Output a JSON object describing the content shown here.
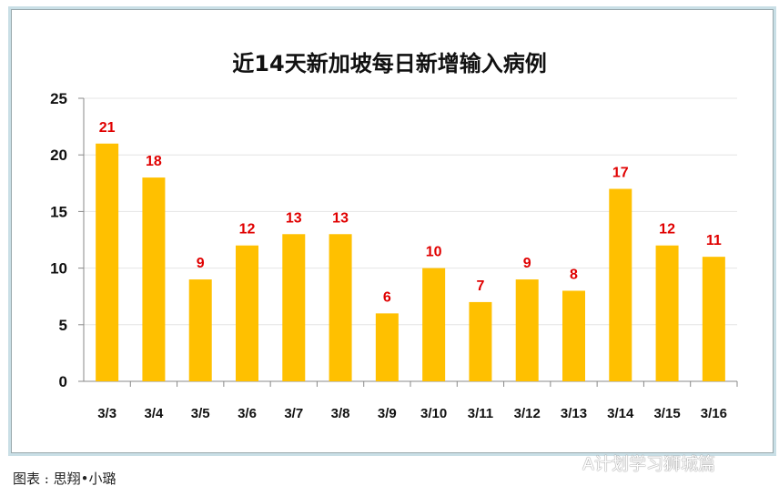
{
  "chart_data": {
    "type": "bar",
    "title": "近14天新加坡每日新增输入病例",
    "categories": [
      "3/3",
      "3/4",
      "3/5",
      "3/6",
      "3/7",
      "3/8",
      "3/9",
      "3/10",
      "3/11",
      "3/12",
      "3/13",
      "3/14",
      "3/15",
      "3/16"
    ],
    "values": [
      21,
      18,
      9,
      12,
      13,
      13,
      6,
      10,
      7,
      9,
      8,
      17,
      12,
      11
    ],
    "ylim": [
      0,
      25
    ],
    "yticks": [
      0,
      5,
      10,
      15,
      20,
      25
    ],
    "grid": true,
    "bar_color": "#FFC000",
    "label_color": "#E00000"
  },
  "caption": "图表 : 思翔•小璐",
  "watermark": "A计划学习狮城篇"
}
